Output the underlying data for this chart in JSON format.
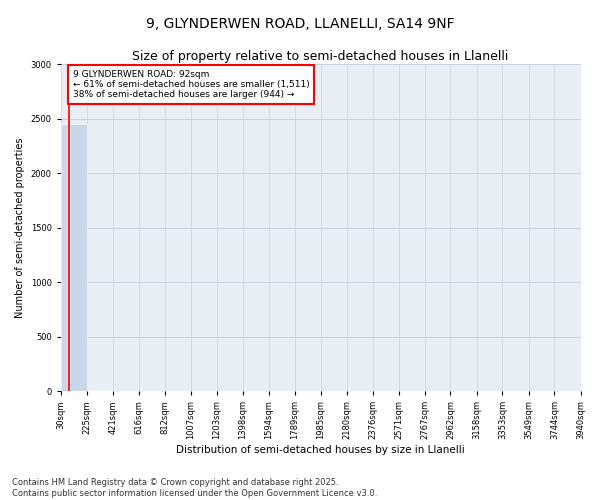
{
  "title": "9, GLYNDERWEN ROAD, LLANELLI, SA14 9NF",
  "subtitle": "Size of property relative to semi-detached houses in Llanelli",
  "xlabel": "Distribution of semi-detached houses by size in Llanelli",
  "ylabel": "Number of semi-detached properties",
  "annotation_line1": "9 GLYNDERWEN ROAD: 92sqm",
  "annotation_line2": "← 61% of semi-detached houses are smaller (1,511)",
  "annotation_line3": "38% of semi-detached houses are larger (944) →",
  "footnote": "Contains HM Land Registry data © Crown copyright and database right 2025.\nContains public sector information licensed under the Open Government Licence v3.0.",
  "bar_edges": [
    30,
    225,
    421,
    616,
    812,
    1007,
    1203,
    1398,
    1594,
    1789,
    1985,
    2180,
    2376,
    2571,
    2767,
    2962,
    3158,
    3353,
    3549,
    3744,
    3940
  ],
  "bar_labels": [
    "30sqm",
    "225sqm",
    "421sqm",
    "616sqm",
    "812sqm",
    "1007sqm",
    "1203sqm",
    "1398sqm",
    "1594sqm",
    "1789sqm",
    "1985sqm",
    "2180sqm",
    "2376sqm",
    "2571sqm",
    "2767sqm",
    "2962sqm",
    "3158sqm",
    "3353sqm",
    "3549sqm",
    "3744sqm",
    "3940sqm"
  ],
  "bar_heights": [
    2455,
    8,
    2,
    1,
    0,
    0,
    0,
    0,
    0,
    0,
    0,
    0,
    0,
    0,
    0,
    0,
    0,
    0,
    0,
    0
  ],
  "bar_color": "#c8d8e8",
  "annotation_box_color": "#cc0000",
  "property_size": 92,
  "ylim": [
    0,
    3000
  ],
  "grid_color": "#c8d4e0",
  "background_color": "#e8eef4",
  "title_fontsize": 10,
  "subtitle_fontsize": 9,
  "axis_label_fontsize": 7.5,
  "tick_fontsize": 6,
  "footnote_fontsize": 6,
  "ylabel_fontsize": 7
}
